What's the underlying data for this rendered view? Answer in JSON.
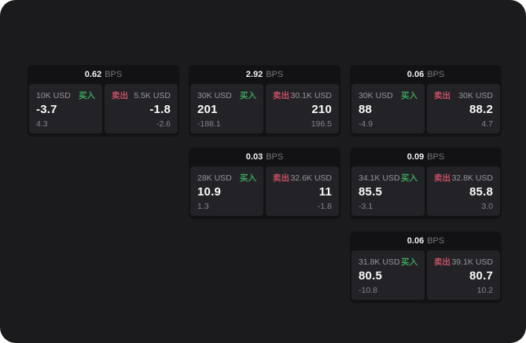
{
  "labels": {
    "buy": "买入",
    "sell": "卖出",
    "bps_unit": "BPS"
  },
  "colors": {
    "panel_bg": "#1b1b1d",
    "card_bg": "#121214",
    "tile_bg": "#232327",
    "buy_green": "#3aa358",
    "sell_red": "#c44f62"
  },
  "cards": [
    {
      "bps_value": "0.62",
      "buy": {
        "notional": "10K USD",
        "price": "-3.7",
        "change": "4.3"
      },
      "sell": {
        "notional": "5.5K USD",
        "price": "-1.8",
        "change": "-2.6"
      }
    },
    {
      "bps_value": "2.92",
      "buy": {
        "notional": "30K USD",
        "price": "201",
        "change": "-188.1"
      },
      "sell": {
        "notional": "30.1K USD",
        "price": "210",
        "change": "196.5"
      }
    },
    {
      "bps_value": "0.06",
      "buy": {
        "notional": "30K USD",
        "price": "88",
        "change": "-4.9"
      },
      "sell": {
        "notional": "30K USD",
        "price": "88.2",
        "change": "4.7"
      }
    },
    {
      "bps_value": "0.03",
      "buy": {
        "notional": "28K USD",
        "price": "10.9",
        "change": "1.3"
      },
      "sell": {
        "notional": "32.6K USD",
        "price": "11",
        "change": "-1.8"
      }
    },
    {
      "bps_value": "0.09",
      "buy": {
        "notional": "34.1K USD",
        "price": "85.5",
        "change": "-3.1"
      },
      "sell": {
        "notional": "32.8K USD",
        "price": "85.8",
        "change": "3.0"
      }
    },
    {
      "bps_value": "0.06",
      "buy": {
        "notional": "31.8K USD",
        "price": "80.5",
        "change": "-10.8"
      },
      "sell": {
        "notional": "39.1K USD",
        "price": "80.7",
        "change": "10.2"
      }
    }
  ]
}
